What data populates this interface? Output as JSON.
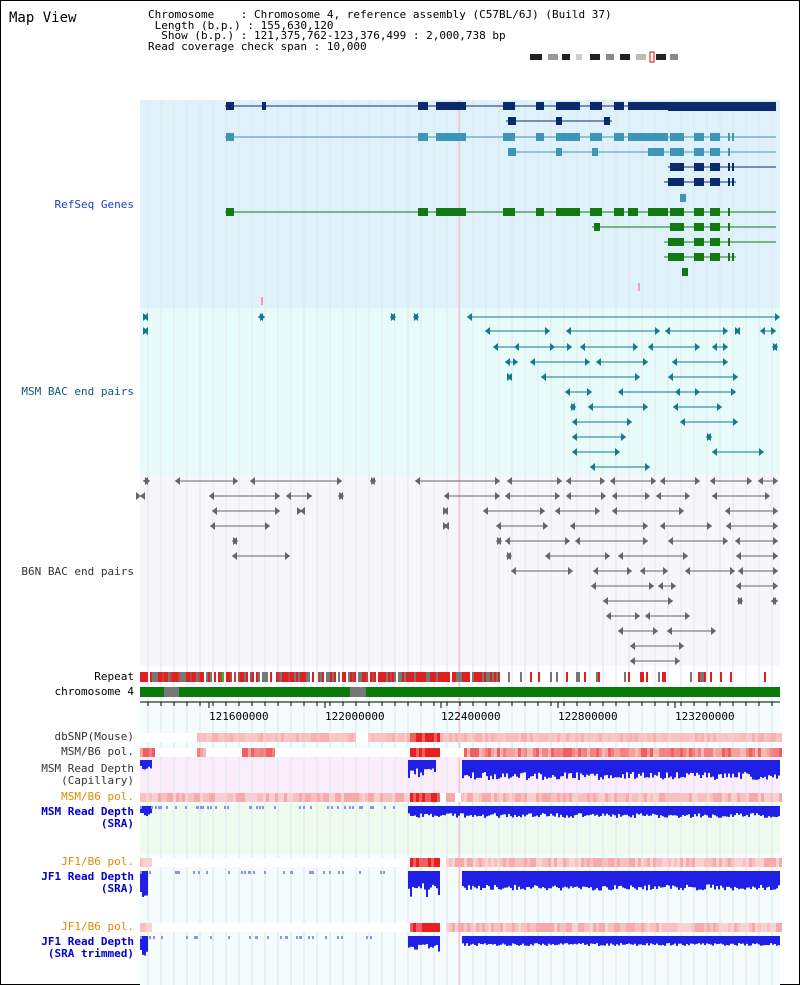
{
  "title": "Map View",
  "info": {
    "chromosome_label": "Chromosome",
    "chromosome_value": "Chromosome 4, reference assembly (C57BL/6J) (Build 37)",
    "length_label": "Length (b.p.)",
    "length_value": "155,630,120",
    "show_label": "Show (b.p.)",
    "show_value": "121,375,762-123,376,499 : 2,000,738 bp",
    "span_label": "Read coverage check span",
    "span_value": "10,000"
  },
  "tracks": {
    "refseq": "RefSeq Genes",
    "msm_bac": "MSM BAC end pairs",
    "b6n_bac": "B6N BAC end pairs",
    "repeat": "Repeat",
    "chromosome": "chromosome 4",
    "dbsnp": "dbSNP(Mouse)",
    "msm_b6_pol1": "MSM/B6 pol.",
    "msm_depth_cap_1": "MSM Read Depth",
    "msm_depth_cap_2": "(Capillary)",
    "msm_b6_pol2": "MSM/B6 pol.",
    "msm_depth_sra_1": "MSM Read Depth",
    "msm_depth_sra_2": "(SRA)",
    "jf1_b6_pol1": "JF1/B6 pol.",
    "jf1_depth_sra_1": "JF1 Read Depth",
    "jf1_depth_sra_2": "(SRA)",
    "jf1_b6_pol2": "JF1/B6 pol.",
    "jf1_depth_trim_1": "JF1 Read Depth",
    "jf1_depth_trim_2": "(SRA trimmed)"
  },
  "axis": {
    "ticks": [
      "121600000",
      "122000000",
      "122400000",
      "122800000",
      "123200000"
    ]
  },
  "colors": {
    "refseq_bg": "#dff2fb",
    "bac_bg": "#e8fbfb",
    "b6n_bg": "#f7f7fb",
    "gene_dark": "#0a2a6e",
    "gene_mid": "#3d96b8",
    "gene_green": "#137a13",
    "bac_teal": "#147a8c",
    "bac_gray": "#666666",
    "chrom_green": "#0a7a0a",
    "depth_blue": "#1f1fe6"
  }
}
